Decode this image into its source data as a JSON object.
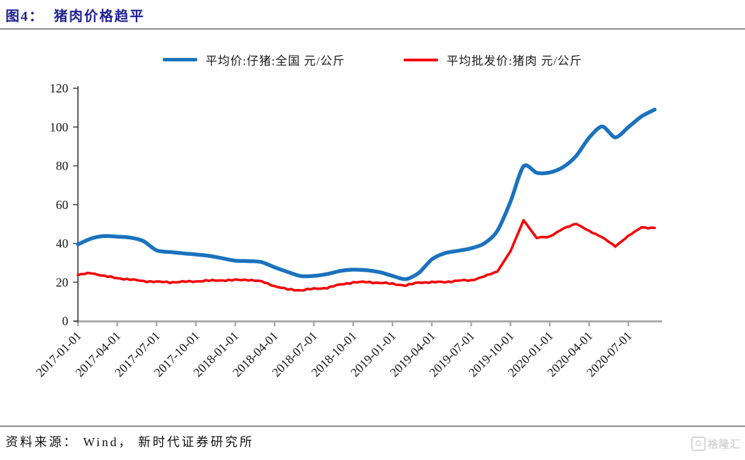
{
  "header": {
    "title": "图4：  猪肉价格趋平"
  },
  "footer": {
    "source": "资料来源： Wind， 新时代证券研究所"
  },
  "watermark": {
    "icon": "G",
    "text": "格隆汇"
  },
  "chart_data": {
    "type": "line",
    "title": "猪肉价格趋平",
    "x_start": "2017-01",
    "x_end": "2020-09",
    "frequency": "monthly",
    "x_ticks": [
      "2017-01-01",
      "2017-04-01",
      "2017-07-01",
      "2017-10-01",
      "2018-01-01",
      "2018-04-01",
      "2018-07-01",
      "2018-10-01",
      "2019-01-01",
      "2019-04-01",
      "2019-07-01",
      "2019-10-01",
      "2020-01-01",
      "2020-04-01",
      "2020-07-01"
    ],
    "y_ticks": [
      0,
      20,
      40,
      60,
      80,
      100,
      120
    ],
    "ylim": [
      0,
      120
    ],
    "grid": false,
    "legend_position": "top-center",
    "series": [
      {
        "name": "平均价:仔猪:全国 元/公斤",
        "color": "#1b72be",
        "stroke_width": 5.5,
        "style": "smooth",
        "values": [
          39.5,
          42.5,
          43.8,
          43.5,
          43.0,
          41.2,
          36.4,
          35.6,
          34.9,
          34.3,
          33.6,
          32.4,
          31.1,
          30.9,
          30.4,
          27.7,
          25.3,
          23.2,
          23.3,
          24.2,
          25.8,
          26.5,
          26.2,
          25.2,
          23.3,
          21.6,
          24.8,
          31.8,
          35.0,
          36.2,
          37.5,
          40.0,
          46.5,
          61.5,
          79.8,
          76.4,
          76.6,
          79.3,
          85.0,
          94.5,
          100.3,
          94.7,
          100.0,
          105.5,
          109.0
        ]
      },
      {
        "name": "平均批发价:猪肉 元/公斤",
        "color": "#f40000",
        "stroke_width": 3.6,
        "style": "noisy",
        "values": [
          23.7,
          24.8,
          23.2,
          22.1,
          21.4,
          20.6,
          20.2,
          20.0,
          20.2,
          20.5,
          20.8,
          21.0,
          21.1,
          21.3,
          20.4,
          18.0,
          16.3,
          15.9,
          16.6,
          17.1,
          18.8,
          19.9,
          20.1,
          19.7,
          19.2,
          18.3,
          19.9,
          20.0,
          20.1,
          20.8,
          21.0,
          23.0,
          25.5,
          36.0,
          52.0,
          42.8,
          43.6,
          47.5,
          50.3,
          46.3,
          43.3,
          38.4,
          44.0,
          48.2,
          48.0
        ]
      }
    ],
    "axis_colors": {
      "x_axis": "#a8a8a8",
      "y_axis": "#484848",
      "tick_label": "#141414"
    }
  }
}
